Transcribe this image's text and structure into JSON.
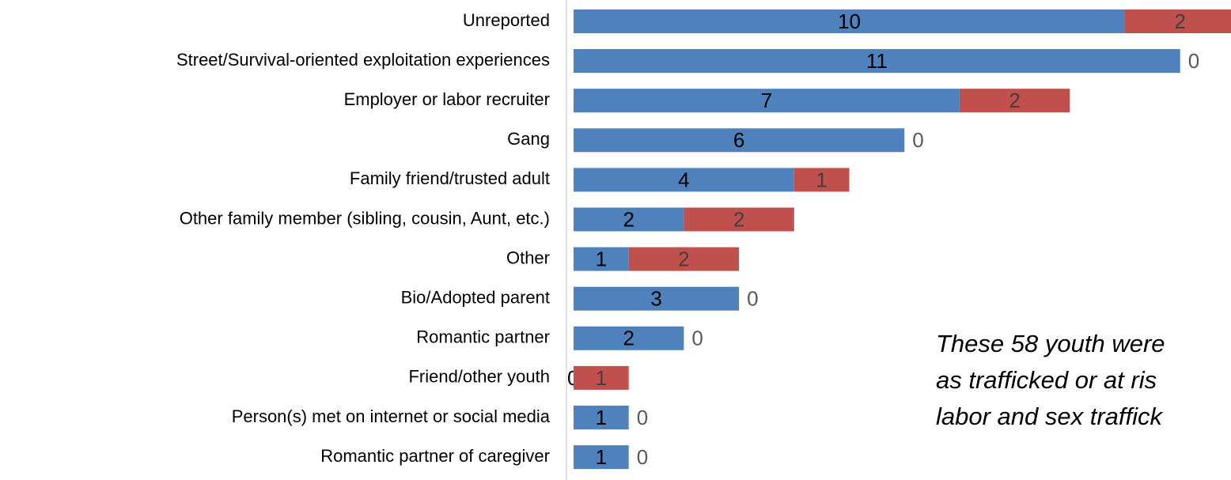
{
  "chart_data": {
    "type": "stacked-bar-horizontal",
    "categories": [
      "Unreported",
      "Street/Survival-oriented exploitation experiences",
      "Employer or labor recruiter",
      "Gang",
      "Family friend/trusted adult",
      "Other family member (sibling, cousin, Aunt, etc.)",
      "Other",
      "Bio/Adopted parent",
      "Romantic partner",
      "Friend/other youth",
      "Person(s) met on internet or social media",
      "Romantic partner of caregiver"
    ],
    "series": [
      {
        "color": "#4f81bd",
        "values": [
          10,
          11,
          7,
          6,
          4,
          2,
          1,
          3,
          2,
          0,
          1,
          1
        ]
      },
      {
        "color": "#c0504d",
        "values": [
          2,
          0,
          2,
          0,
          1,
          2,
          2,
          0,
          0,
          1,
          0,
          0
        ]
      }
    ],
    "annotation": [
      "These 58 youth were",
      "as trafficked or at ris",
      "labor and sex traffick"
    ]
  }
}
